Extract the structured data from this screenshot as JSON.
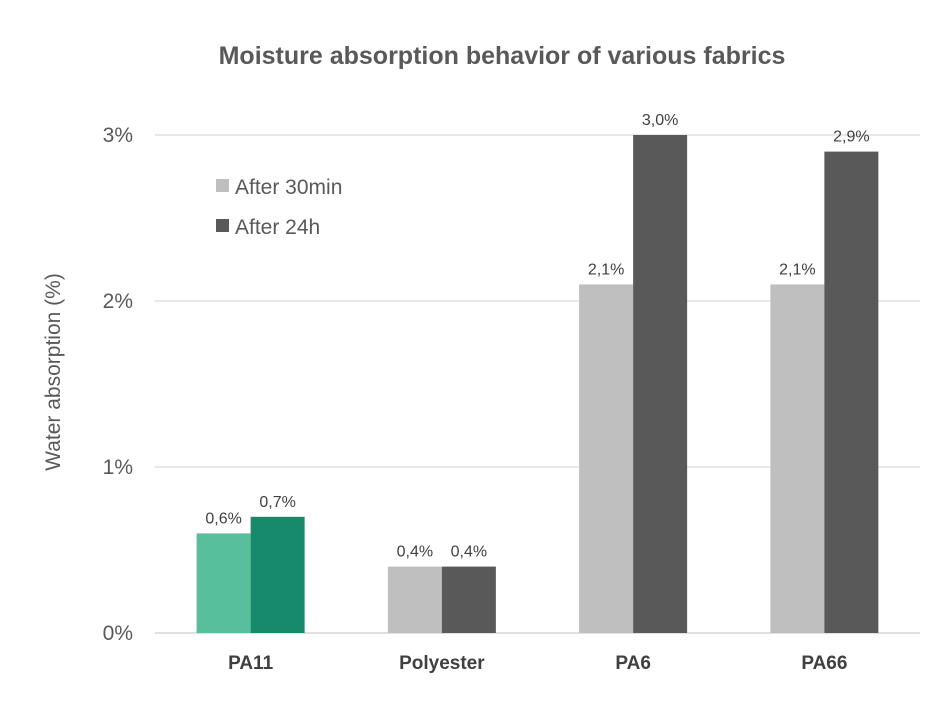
{
  "chart_data": {
    "type": "bar",
    "title": "Moisture absorption behavior of various fabrics",
    "ylabel": "Water absorption (%)",
    "xlabel": "",
    "categories": [
      "PA11",
      "Polyester",
      "PA6",
      "PA66"
    ],
    "series": [
      {
        "name": "After 30min",
        "values": [
          0.6,
          0.4,
          2.1,
          2.1
        ],
        "labels": [
          "0,6%",
          "0,4%",
          "2,1%",
          "2,1%"
        ],
        "color": "#bfbfbf",
        "highlight_color": "#57bf9b"
      },
      {
        "name": "After 24h",
        "values": [
          0.7,
          0.4,
          3.0,
          2.9
        ],
        "labels": [
          "0,7%",
          "0,4%",
          "3,0%",
          "2,9%"
        ],
        "color": "#595959",
        "highlight_color": "#178a6c"
      }
    ],
    "highlight_category": "PA11",
    "ylim": [
      0,
      3
    ],
    "yticks": [
      0,
      1,
      2,
      3
    ],
    "ytick_labels": [
      "0%",
      "1%",
      "2%",
      "3%"
    ],
    "grid": true,
    "legend_position": "top-left"
  }
}
